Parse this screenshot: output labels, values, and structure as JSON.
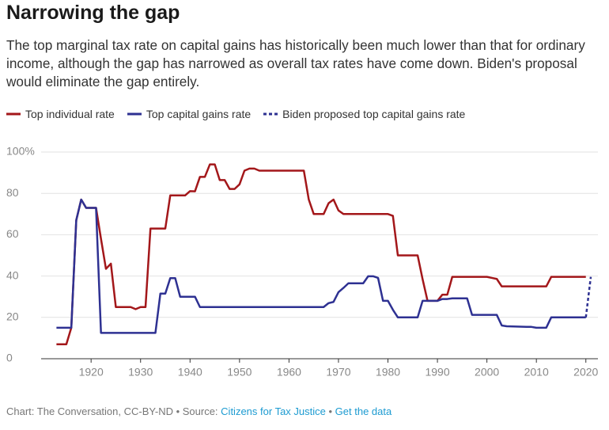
{
  "chart_data": {
    "type": "line",
    "title": "Narrowing the gap",
    "subtitle": "The top marginal tax rate on capital gains has historically been much lower than that for ordinary income, although the gap has narrowed as overall tax rates have come down. Biden's proposal would eliminate the gap entirely.",
    "xlim": [
      1911.5,
      2021.8
    ],
    "xticks": [
      1920,
      1930,
      1940,
      1950,
      1960,
      1970,
      1980,
      1990,
      2000,
      2010,
      2020
    ],
    "ylim": [
      0,
      100
    ],
    "yticks": [
      0,
      20,
      40,
      60,
      80,
      {
        "value": 100,
        "label": "100%"
      }
    ],
    "grid": true,
    "series": [
      {
        "name": "Top individual rate",
        "color": "#a3171a",
        "style": "solid",
        "x": [
          1913,
          1915,
          1916,
          1917,
          1918,
          1919,
          1921,
          1922,
          1923,
          1924,
          1925,
          1928,
          1929,
          1930,
          1931,
          1932,
          1935,
          1936,
          1939,
          1940,
          1941,
          1942,
          1943,
          1944,
          1945,
          1946,
          1947,
          1948,
          1949,
          1950,
          1951,
          1952,
          1953,
          1954,
          1963,
          1964,
          1965,
          1967,
          1968,
          1969,
          1970,
          1971,
          1980,
          1981,
          1982,
          1986,
          1987,
          1988,
          1990,
          1991,
          1992,
          1993,
          2000,
          2001,
          2002,
          2003,
          2012,
          2013,
          2020
        ],
        "values": [
          7,
          7,
          15,
          67,
          77,
          73,
          73,
          58,
          43.5,
          46,
          25,
          25,
          24,
          25,
          25,
          63,
          63,
          79,
          79,
          81.1,
          81,
          88,
          88,
          94,
          94,
          86.45,
          86.45,
          82.13,
          82.13,
          84.36,
          91,
          92,
          92,
          91,
          91,
          77,
          70,
          70,
          75.25,
          77,
          71.75,
          70,
          70,
          69.13,
          50,
          50,
          38.5,
          28,
          28,
          31,
          31,
          39.6,
          39.6,
          39.1,
          38.6,
          35,
          35,
          39.6,
          39.6
        ]
      },
      {
        "name": "Top capital gains rate",
        "color": "#2e3192",
        "style": "solid",
        "x": [
          1913,
          1916,
          1917,
          1918,
          1919,
          1921,
          1922,
          1933,
          1934,
          1935,
          1936,
          1937,
          1938,
          1941,
          1942,
          1967,
          1968,
          1969,
          1970,
          1971,
          1972,
          1975,
          1976,
          1977,
          1978,
          1979,
          1980,
          1981,
          1982,
          1986,
          1987,
          1990,
          1991,
          1992,
          1993,
          1996,
          1997,
          2002,
          2003,
          2004,
          2008,
          2009,
          2010,
          2012,
          2013,
          2020
        ],
        "values": [
          15,
          15,
          67,
          77,
          73,
          73,
          12.5,
          12.5,
          31.5,
          31.5,
          39,
          39,
          30,
          30,
          25,
          25,
          26.9,
          27.5,
          32.2,
          34.25,
          36.5,
          36.5,
          39.9,
          39.9,
          39.1,
          28,
          28,
          23.7,
          20,
          20,
          28,
          28,
          28.9,
          28.9,
          29.2,
          29.2,
          21.2,
          21.2,
          16.1,
          15.7,
          15.4,
          15.4,
          15,
          15,
          20,
          20
        ]
      },
      {
        "name": "Biden proposed top capital gains rate",
        "color": "#2e3192",
        "style": "dashed",
        "x": [
          2020,
          2021
        ],
        "values": [
          20,
          39.6
        ]
      }
    ],
    "footer": {
      "credit": "Chart: The Conversation, CC-BY-ND • Source: ",
      "source": "Citizens for Tax Justice",
      "separator": " • ",
      "data_link": "Get the data"
    }
  }
}
